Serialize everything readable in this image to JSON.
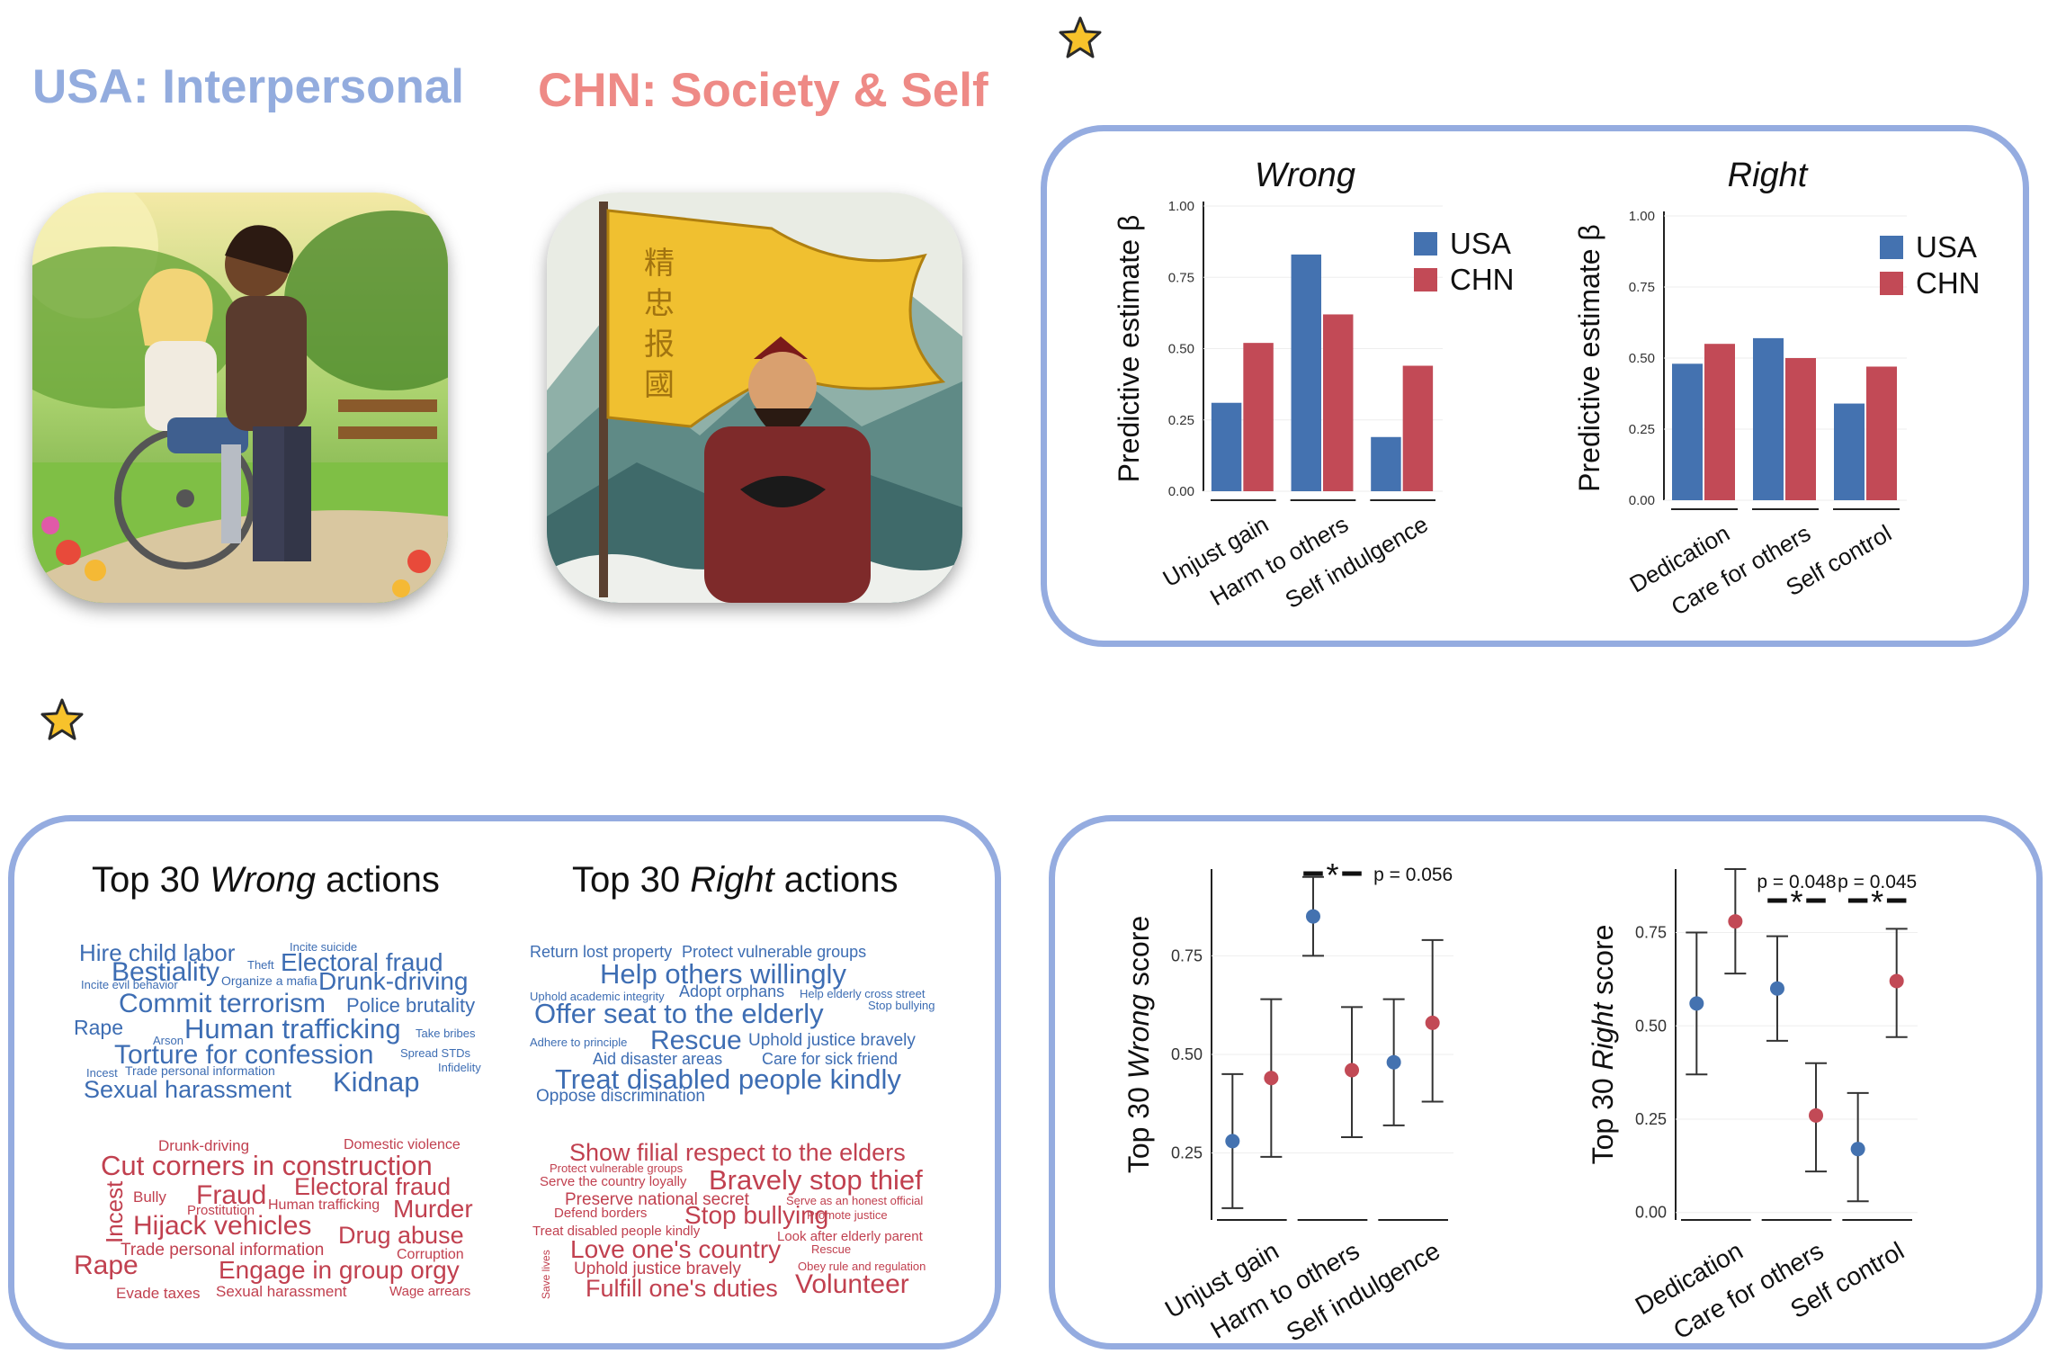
{
  "headings": {
    "usa": "USA:  Interpersonal",
    "chn": "CHN: Society & Self",
    "usa_color": "#93acde",
    "chn_color": "#ee8a86"
  },
  "icons": {
    "top_star": "star-icon",
    "mid_star": "star-icon"
  },
  "colors": {
    "usa": "#4472b0",
    "chn": "#c24a56",
    "panel_border": "#95ace0",
    "usa_text": "#3d6db3",
    "chn_text": "#c1404f"
  },
  "wordclouds": {
    "wrong_title_pre": "Top 30 ",
    "wrong_title_em": "Wrong",
    "wrong_title_post": " actions",
    "right_title_pre": "Top 30 ",
    "right_title_em": "Right",
    "right_title_post": " actions",
    "usa_wrong": [
      "Hire child labor",
      "Incite suicide",
      "Theft",
      "Electoral fraud",
      "Bestiality",
      "Organize a mafia",
      "Drunk-driving",
      "Incite evil behavior",
      "Commit terrorism",
      "Police brutality",
      "Rape",
      "Human trafficking",
      "Take bribes",
      "Arson",
      "Torture for confession",
      "Spread STDs",
      "Incest",
      "Trade personal information",
      "Infidelity",
      "Kidnap",
      "Sexual harassment"
    ],
    "chn_wrong": [
      "Drunk-driving",
      "Domestic violence",
      "Cut corners in construction",
      "Electoral fraud",
      "Fraud",
      "Bully",
      "Prostitution",
      "Human trafficking",
      "Murder",
      "Incest",
      "Hijack vehicles",
      "Drug abuse",
      "Trade personal information",
      "Corruption",
      "Rape",
      "Engage in group orgy",
      "Evade taxes",
      "Sexual harassment",
      "Wage arrears"
    ],
    "usa_right": [
      "Return lost property",
      "Protect vulnerable groups",
      "Help others willingly",
      "Uphold academic integrity",
      "Adopt orphans",
      "Help elderly cross street",
      "Stop bullying",
      "Offer seat to the elderly",
      "Adhere to principle",
      "Rescue",
      "Uphold justice bravely",
      "Aid disaster areas",
      "Care for sick friend",
      "Treat disabled people kindly",
      "Oppose discrimination"
    ],
    "chn_right": [
      "Show filial respect to the elders",
      "Protect vulnerable groups",
      "Serve the country loyally",
      "Bravely stop thief",
      "Preserve national secret",
      "Serve as an honest official",
      "Defend borders",
      "Stop bullying",
      "Promote justice",
      "Treat disabled people kindly",
      "Look after elderly parent",
      "Love one's country",
      "Rescue",
      "Save lives",
      "Uphold justice bravely",
      "Obey rule and regulation",
      "Fulfill one's duties",
      "Volunteer"
    ]
  },
  "chart_data": [
    {
      "type": "bar",
      "title": "Wrong",
      "ylabel": "Predictive estimate β",
      "ylim": [
        0,
        1
      ],
      "yticks": [
        "0.00",
        "0.25",
        "0.50",
        "0.75",
        "1.00"
      ],
      "categories": [
        "Unjust gain",
        "Harm to others",
        "Self indulgence"
      ],
      "series": [
        {
          "name": "USA",
          "values": [
            0.31,
            0.83,
            0.19
          ]
        },
        {
          "name": "CHN",
          "values": [
            0.52,
            0.62,
            0.44
          ]
        }
      ],
      "legend": "top-right"
    },
    {
      "type": "bar",
      "title": "Right",
      "ylabel": "Predictive estimate β",
      "ylim": [
        0,
        1
      ],
      "yticks": [
        "0.00",
        "0.25",
        "0.50",
        "0.75",
        "1.00"
      ],
      "categories": [
        "Dedication",
        "Care for others",
        "Self control"
      ],
      "series": [
        {
          "name": "USA",
          "values": [
            0.48,
            0.57,
            0.34
          ]
        },
        {
          "name": "CHN",
          "values": [
            0.55,
            0.5,
            0.47
          ]
        }
      ],
      "legend": "top-right"
    },
    {
      "type": "scatter",
      "ylabel_pre": "Top 30 ",
      "ylabel_em": "Wrong",
      "ylabel_post": " score",
      "ylim": [
        0.08,
        0.97
      ],
      "yticks": [
        0.25,
        0.5,
        0.75
      ],
      "categories": [
        "Unjust gain",
        "Harm to others",
        "Self indulgence"
      ],
      "series": [
        {
          "name": "USA",
          "mean": [
            0.28,
            0.85,
            0.48
          ],
          "lower": [
            0.11,
            0.75,
            0.32
          ],
          "upper": [
            0.45,
            0.95,
            0.64
          ]
        },
        {
          "name": "CHN",
          "mean": [
            0.44,
            0.46,
            0.58
          ],
          "lower": [
            0.24,
            0.29,
            0.38
          ],
          "upper": [
            0.64,
            0.62,
            0.79
          ]
        }
      ],
      "annotations": [
        {
          "category": "Harm to others",
          "label": "*"
        },
        {
          "category": "Self indulgence",
          "label": "p = 0.056"
        }
      ]
    },
    {
      "type": "scatter",
      "ylabel_pre": "Top 30 ",
      "ylabel_em": "Right",
      "ylabel_post": " score",
      "ylim": [
        -0.02,
        0.92
      ],
      "yticks": [
        0.0,
        0.25,
        0.5,
        0.75
      ],
      "categories": [
        "Dedication",
        "Care for others",
        "Self control"
      ],
      "series": [
        {
          "name": "USA",
          "mean": [
            0.56,
            0.6,
            0.17
          ],
          "lower": [
            0.37,
            0.46,
            0.03
          ],
          "upper": [
            0.75,
            0.74,
            0.32
          ]
        },
        {
          "name": "CHN",
          "mean": [
            0.78,
            0.26,
            0.62
          ],
          "lower": [
            0.64,
            0.11,
            0.47
          ],
          "upper": [
            0.92,
            0.4,
            0.76
          ]
        }
      ],
      "annotations": [
        {
          "category": "Care for others",
          "label": "*",
          "p": "p = 0.048"
        },
        {
          "category": "Self control",
          "label": "*",
          "p": "p = 0.045"
        }
      ]
    }
  ]
}
